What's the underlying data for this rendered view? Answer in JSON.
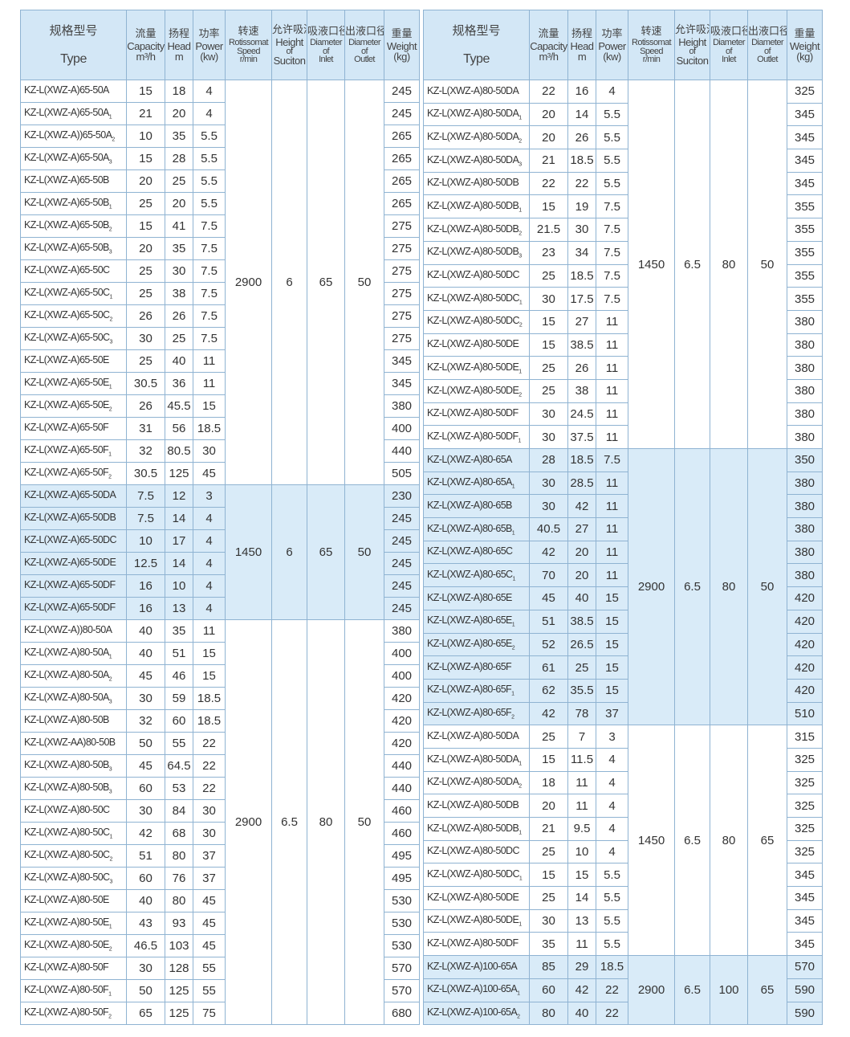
{
  "header": {
    "type_cn": "规格型号",
    "type_en": "Type",
    "capacity_cn": "流量",
    "capacity_en": "Capacity",
    "capacity_unit": "m³/h",
    "head_cn": "扬程",
    "head_en": "Head",
    "head_unit": "m",
    "power_cn": "功率",
    "power_en": "Power",
    "power_unit": "(kw)",
    "speed_cn": "转速",
    "speed_en": "Rotissomat",
    "speed_en2": "Speed",
    "speed_unit": "r/min",
    "suction_cn": "允许吸深",
    "suction_en": "Height",
    "suction_en2": "of",
    "suction_en3": "Suciton",
    "inlet_cn": "吸液口径",
    "inlet_en": "Diameter",
    "inlet_en2": "of",
    "inlet_en3": "Inlet",
    "outlet_cn": "出液口径",
    "outlet_en": "Diameter",
    "outlet_en2": "of",
    "outlet_en3": "Outlet",
    "weight_cn": "重量",
    "weight_en": "Weight",
    "weight_unit": "(kg)"
  },
  "colors": {
    "header_bg": "#d3e7f6",
    "highlight_bg": "#d9ebf8",
    "border": "#8fb3d2"
  },
  "tables": [
    {
      "groups": [
        {
          "speed": "2900",
          "suction": "6",
          "inlet": "65",
          "outlet": "50",
          "highlight": false,
          "rows": [
            [
              "KZ-L(XWZ-A)65-50A",
              "",
              "15",
              "18",
              "4",
              "245"
            ],
            [
              "KZ-L(XWZ-A)65-50A",
              "1",
              "21",
              "20",
              "4",
              "245"
            ],
            [
              "KZ-L(XWZ-A))65-50A",
              "2",
              "10",
              "35",
              "5.5",
              "265"
            ],
            [
              "KZ-L(XWZ-A)65-50A",
              "3",
              "15",
              "28",
              "5.5",
              "265"
            ],
            [
              "KZ-L(XWZ-A)65-50B",
              "",
              "20",
              "25",
              "5.5",
              "265"
            ],
            [
              "KZ-L(XWZ-A)65-50B",
              "1",
              "25",
              "20",
              "5.5",
              "265"
            ],
            [
              "KZ-L(XWZ-A)65-50B",
              "2",
              "15",
              "41",
              "7.5",
              "275"
            ],
            [
              "KZ-L(XWZ-A)65-50B",
              "3",
              "20",
              "35",
              "7.5",
              "275"
            ],
            [
              "KZ-L(XWZ-A)65-50C",
              "",
              "25",
              "30",
              "7.5",
              "275"
            ],
            [
              "KZ-L(XWZ-A)65-50C",
              "1",
              "25",
              "38",
              "7.5",
              "275"
            ],
            [
              "KZ-L(XWZ-A)65-50C",
              "2",
              "26",
              "26",
              "7.5",
              "275"
            ],
            [
              "KZ-L(XWZ-A)65-50C",
              "3",
              "30",
              "25",
              "7.5",
              "275"
            ],
            [
              "KZ-L(XWZ-A)65-50E",
              "",
              "25",
              "40",
              "11",
              "345"
            ],
            [
              "KZ-L(XWZ-A)65-50E",
              "1",
              "30.5",
              "36",
              "11",
              "345"
            ],
            [
              "KZ-L(XWZ-A)65-50E",
              "2",
              "26",
              "45.5",
              "15",
              "380"
            ],
            [
              "KZ-L(XWZ-A)65-50F",
              "",
              "31",
              "56",
              "18.5",
              "400"
            ],
            [
              "KZ-L(XWZ-A)65-50F",
              "1",
              "32",
              "80.5",
              "30",
              "440"
            ],
            [
              "KZ-L(XWZ-A)65-50F",
              "2",
              "30.5",
              "125",
              "45",
              "505"
            ]
          ]
        },
        {
          "speed": "1450",
          "suction": "6",
          "inlet": "65",
          "outlet": "50",
          "highlight": true,
          "rows": [
            [
              "KZ-L(XWZ-A)65-50DA",
              "",
              "7.5",
              "12",
              "3",
              "230"
            ],
            [
              "KZ-L(XWZ-A)65-50DB",
              "",
              "7.5",
              "14",
              "4",
              "245"
            ],
            [
              "KZ-L(XWZ-A)65-50DC",
              "",
              "10",
              "17",
              "4",
              "245"
            ],
            [
              "KZ-L(XWZ-A)65-50DE",
              "",
              "12.5",
              "14",
              "4",
              "245"
            ],
            [
              "KZ-L(XWZ-A)65-50DF",
              "",
              "16",
              "10",
              "4",
              "245"
            ],
            [
              "KZ-L(XWZ-A)65-50DF",
              "",
              "16",
              "13",
              "4",
              "245"
            ]
          ]
        },
        {
          "speed": "2900",
          "suction": "6.5",
          "inlet": "80",
          "outlet": "50",
          "highlight": false,
          "rows": [
            [
              "KZ-L(XWZ-A))80-50A",
              "",
              "40",
              "35",
              "11",
              "380"
            ],
            [
              "KZ-L(XWZ-A)80-50A",
              "1",
              "40",
              "51",
              "15",
              "400"
            ],
            [
              "KZ-L(XWZ-A)80-50A",
              "2",
              "45",
              "46",
              "15",
              "400"
            ],
            [
              "KZ-L(XWZ-A)80-50A",
              "3",
              "30",
              "59",
              "18.5",
              "420"
            ],
            [
              "KZ-L(XWZ-A)80-50B",
              "",
              "32",
              "60",
              "18.5",
              "420"
            ],
            [
              "KZ-L(XWZ-AA)80-50B",
              "",
              "50",
              "55",
              "22",
              "420"
            ],
            [
              "KZ-L(XWZ-A)80-50B",
              "3",
              "45",
              "64.5",
              "22",
              "440"
            ],
            [
              "KZ-L(XWZ-A)80-50B",
              "3",
              "60",
              "53",
              "22",
              "440"
            ],
            [
              "KZ-L(XWZ-A)80-50C",
              "",
              "30",
              "84",
              "30",
              "460"
            ],
            [
              "KZ-L(XWZ-A)80-50C",
              "1",
              "42",
              "68",
              "30",
              "460"
            ],
            [
              "KZ-L(XWZ-A)80-50C",
              "2",
              "51",
              "80",
              "37",
              "495"
            ],
            [
              "KZ-L(XWZ-A)80-50C",
              "3",
              "60",
              "76",
              "37",
              "495"
            ],
            [
              "KZ-L(XWZ-A)80-50E",
              "",
              "40",
              "80",
              "45",
              "530"
            ],
            [
              "KZ-L(XWZ-A)80-50E",
              "1",
              "43",
              "93",
              "45",
              "530"
            ],
            [
              "KZ-L(XWZ-A)80-50E",
              "2",
              "46.5",
              "103",
              "45",
              "530"
            ],
            [
              "KZ-L(XWZ-A)80-50F",
              "",
              "30",
              "128",
              "55",
              "570"
            ],
            [
              "KZ-L(XWZ-A)80-50F",
              "1",
              "50",
              "125",
              "55",
              "570"
            ],
            [
              "KZ-L(XWZ-A)80-50F",
              "2",
              "65",
              "125",
              "75",
              "680"
            ]
          ]
        }
      ]
    },
    {
      "groups": [
        {
          "speed": "1450",
          "suction": "6.5",
          "inlet": "80",
          "outlet": "50",
          "highlight": false,
          "rows": [
            [
              "KZ-L(XWZ-A)80-50DA",
              "",
              "22",
              "16",
              "4",
              "325"
            ],
            [
              "KZ-L(XWZ-A)80-50DA",
              "1",
              "20",
              "14",
              "5.5",
              "345"
            ],
            [
              "KZ-L(XWZ-A)80-50DA",
              "2",
              "20",
              "26",
              "5.5",
              "345"
            ],
            [
              "KZ-L(XWZ-A)80-50DA",
              "3",
              "21",
              "18.5",
              "5.5",
              "345"
            ],
            [
              "KZ-L(XWZ-A)80-50DB",
              "",
              "22",
              "22",
              "5.5",
              "345"
            ],
            [
              "KZ-L(XWZ-A)80-50DB",
              "1",
              "15",
              "19",
              "7.5",
              "355"
            ],
            [
              "KZ-L(XWZ-A)80-50DB",
              "2",
              "21.5",
              "30",
              "7.5",
              "355"
            ],
            [
              "KZ-L(XWZ-A)80-50DB",
              "3",
              "23",
              "34",
              "7.5",
              "355"
            ],
            [
              "KZ-L(XWZ-A)80-50DC",
              "",
              "25",
              "18.5",
              "7.5",
              "355"
            ],
            [
              "KZ-L(XWZ-A)80-50DC",
              "1",
              "30",
              "17.5",
              "7.5",
              "355"
            ],
            [
              "KZ-L(XWZ-A)80-50DC",
              "2",
              "15",
              "27",
              "11",
              "380"
            ],
            [
              "KZ-L(XWZ-A)80-50DE",
              "",
              "15",
              "38.5",
              "11",
              "380"
            ],
            [
              "KZ-L(XWZ-A)80-50DE",
              "1",
              "25",
              "26",
              "11",
              "380"
            ],
            [
              "KZ-L(XWZ-A)80-50DE",
              "2",
              "25",
              "38",
              "11",
              "380"
            ],
            [
              "KZ-L(XWZ-A)80-50DF",
              "",
              "30",
              "24.5",
              "11",
              "380"
            ],
            [
              "KZ-L(XWZ-A)80-50DF",
              "1",
              "30",
              "37.5",
              "11",
              "380"
            ]
          ]
        },
        {
          "speed": "2900",
          "suction": "6.5",
          "inlet": "80",
          "outlet": "50",
          "highlight": true,
          "rows": [
            [
              "KZ-L(XWZ-A)80-65A",
              "",
              "28",
              "18.5",
              "7.5",
              "350"
            ],
            [
              "KZ-L(XWZ-A)80-65A",
              "1",
              "30",
              "28.5",
              "11",
              "380"
            ],
            [
              "KZ-L(XWZ-A)80-65B",
              "",
              "30",
              "42",
              "11",
              "380"
            ],
            [
              "KZ-L(XWZ-A)80-65B",
              "1",
              "40.5",
              "27",
              "11",
              "380"
            ],
            [
              "KZ-L(XWZ-A)80-65C",
              "",
              "42",
              "20",
              "11",
              "380"
            ],
            [
              "KZ-L(XWZ-A)80-65C",
              "1",
              "70",
              "20",
              "11",
              "380"
            ],
            [
              "KZ-L(XWZ-A)80-65E",
              "",
              "45",
              "40",
              "15",
              "420"
            ],
            [
              "KZ-L(XWZ-A)80-65E",
              "1",
              "51",
              "38.5",
              "15",
              "420"
            ],
            [
              "KZ-L(XWZ-A)80-65E",
              "2",
              "52",
              "26.5",
              "15",
              "420"
            ],
            [
              "KZ-L(XWZ-A)80-65F",
              "",
              "61",
              "25",
              "15",
              "420"
            ],
            [
              "KZ-L(XWZ-A)80-65F",
              "1",
              "62",
              "35.5",
              "15",
              "420"
            ],
            [
              "KZ-L(XWZ-A)80-65F",
              "2",
              "42",
              "78",
              "37",
              "510"
            ]
          ]
        },
        {
          "speed": "1450",
          "suction": "6.5",
          "inlet": "80",
          "outlet": "65",
          "highlight": false,
          "rows": [
            [
              "KZ-L(XWZ-A)80-50DA",
              "",
              "25",
              "7",
              "3",
              "315"
            ],
            [
              "KZ-L(XWZ-A)80-50DA",
              "1",
              "15",
              "11.5",
              "4",
              "325"
            ],
            [
              "KZ-L(XWZ-A)80-50DA",
              "2",
              "18",
              "11",
              "4",
              "325"
            ],
            [
              "KZ-L(XWZ-A)80-50DB",
              "",
              "20",
              "11",
              "4",
              "325"
            ],
            [
              "KZ-L(XWZ-A)80-50DB",
              "1",
              "21",
              "9.5",
              "4",
              "325"
            ],
            [
              "KZ-L(XWZ-A)80-50DC",
              "",
              "25",
              "10",
              "4",
              "325"
            ],
            [
              "KZ-L(XWZ-A)80-50DC",
              "1",
              "15",
              "15",
              "5.5",
              "345"
            ],
            [
              "KZ-L(XWZ-A)80-50DE",
              "",
              "25",
              "14",
              "5.5",
              "345"
            ],
            [
              "KZ-L(XWZ-A)80-50DE",
              "1",
              "30",
              "13",
              "5.5",
              "345"
            ],
            [
              "KZ-L(XWZ-A)80-50DF",
              "",
              "35",
              "11",
              "5.5",
              "345"
            ]
          ]
        },
        {
          "speed": "2900",
          "suction": "6.5",
          "inlet": "100",
          "outlet": "65",
          "highlight": true,
          "rows": [
            [
              "KZ-L(XWZ-A)100-65A",
              "",
              "85",
              "29",
              "18.5",
              "570"
            ],
            [
              "KZ-L(XWZ-A)100-65A",
              "1",
              "60",
              "42",
              "22",
              "590"
            ],
            [
              "KZ-L(XWZ-A)100-65A",
              "2",
              "80",
              "40",
              "22",
              "590"
            ]
          ]
        }
      ]
    }
  ]
}
